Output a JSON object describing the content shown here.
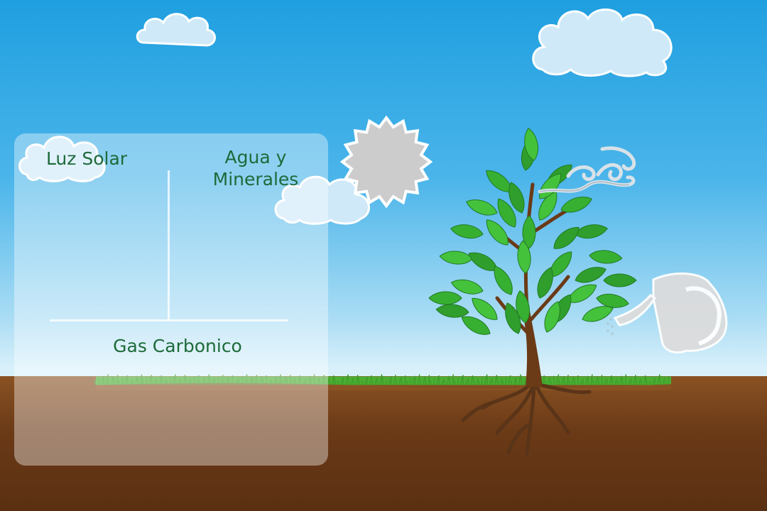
{
  "scene": {
    "title": "",
    "colors": {
      "sky": "#1f9fe0",
      "grass": "#4caf32",
      "soil": "#6b3a17",
      "leaf": "#3fbf3a",
      "label": "#1d6a3a"
    }
  },
  "panel": {
    "labels": {
      "luz_solar": "Luz Solar",
      "agua_line1": "Agua y",
      "agua_line2": "Minerales",
      "gas_carbonico": "Gas Carbonico"
    }
  },
  "items": {
    "sun_icon": "sun-icon",
    "wind_icon": "wind-icon",
    "watering_can_icon": "watering-can-icon",
    "tree": "tree"
  }
}
